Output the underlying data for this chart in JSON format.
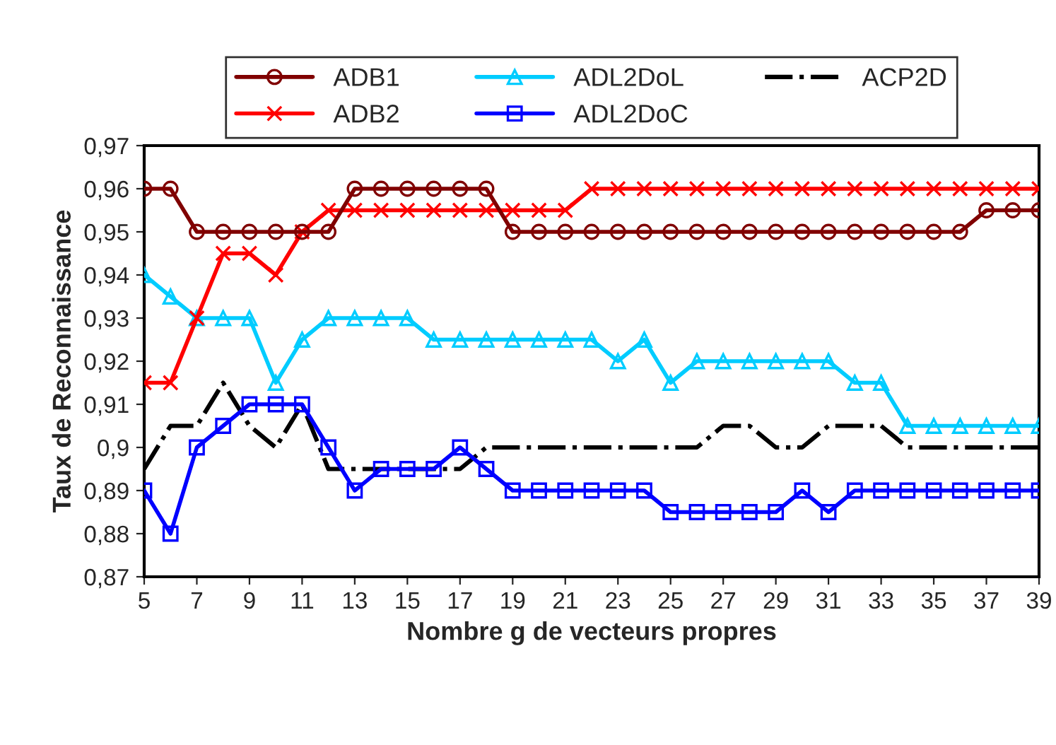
{
  "chart_data": {
    "type": "line",
    "xlabel": "Nombre g de vecteurs propres",
    "ylabel": "Taux de Reconnaissance",
    "x": [
      5,
      6,
      7,
      8,
      9,
      10,
      11,
      12,
      13,
      14,
      15,
      16,
      17,
      18,
      19,
      20,
      21,
      22,
      23,
      24,
      25,
      26,
      27,
      28,
      29,
      30,
      31,
      32,
      33,
      34,
      35,
      36,
      37,
      38,
      39
    ],
    "series": [
      {
        "name": "ADB1",
        "color": "#800000",
        "marker": "circle",
        "line_style": "solid",
        "values": [
          0.96,
          0.96,
          0.95,
          0.95,
          0.95,
          0.95,
          0.95,
          0.95,
          0.96,
          0.96,
          0.96,
          0.96,
          0.96,
          0.96,
          0.95,
          0.95,
          0.95,
          0.95,
          0.95,
          0.95,
          0.95,
          0.95,
          0.95,
          0.95,
          0.95,
          0.95,
          0.95,
          0.95,
          0.95,
          0.95,
          0.95,
          0.95,
          0.955,
          0.955,
          0.955
        ]
      },
      {
        "name": "ADB2",
        "color": "#ff0000",
        "marker": "cross",
        "line_style": "solid",
        "values": [
          0.915,
          0.915,
          0.93,
          0.945,
          0.945,
          0.94,
          0.95,
          0.955,
          0.955,
          0.955,
          0.955,
          0.955,
          0.955,
          0.955,
          0.955,
          0.955,
          0.955,
          0.96,
          0.96,
          0.96,
          0.96,
          0.96,
          0.96,
          0.96,
          0.96,
          0.96,
          0.96,
          0.96,
          0.96,
          0.96,
          0.96,
          0.96,
          0.96,
          0.96,
          0.96
        ]
      },
      {
        "name": "ADL2DoL",
        "color": "#00ccff",
        "marker": "triangle",
        "line_style": "solid",
        "values": [
          0.94,
          0.935,
          0.93,
          0.93,
          0.93,
          0.915,
          0.925,
          0.93,
          0.93,
          0.93,
          0.93,
          0.925,
          0.925,
          0.925,
          0.925,
          0.925,
          0.925,
          0.925,
          0.92,
          0.925,
          0.915,
          0.92,
          0.92,
          0.92,
          0.92,
          0.92,
          0.92,
          0.915,
          0.915,
          0.905,
          0.905,
          0.905,
          0.905,
          0.905,
          0.905
        ]
      },
      {
        "name": "ADL2DoC",
        "color": "#0000ff",
        "marker": "square",
        "line_style": "solid",
        "values": [
          0.89,
          0.88,
          0.9,
          0.905,
          0.91,
          0.91,
          0.91,
          0.9,
          0.89,
          0.895,
          0.895,
          0.895,
          0.9,
          0.895,
          0.89,
          0.89,
          0.89,
          0.89,
          0.89,
          0.89,
          0.885,
          0.885,
          0.885,
          0.885,
          0.885,
          0.89,
          0.885,
          0.89,
          0.89,
          0.89,
          0.89,
          0.89,
          0.89,
          0.89,
          0.89
        ]
      },
      {
        "name": "ACP2D",
        "color": "#000000",
        "marker": "none",
        "line_style": "dashdot",
        "values": [
          0.895,
          0.905,
          0.905,
          0.915,
          0.905,
          0.9,
          0.91,
          0.895,
          0.895,
          0.895,
          0.895,
          0.895,
          0.895,
          0.9,
          0.9,
          0.9,
          0.9,
          0.9,
          0.9,
          0.9,
          0.9,
          0.9,
          0.905,
          0.905,
          0.9,
          0.9,
          0.905,
          0.905,
          0.905,
          0.9,
          0.9,
          0.9,
          0.9,
          0.9,
          0.9
        ]
      }
    ],
    "xlim": [
      5,
      39
    ],
    "xticks": [
      5,
      7,
      9,
      11,
      13,
      15,
      17,
      19,
      21,
      23,
      25,
      27,
      29,
      31,
      33,
      35,
      37,
      39
    ],
    "ylim": [
      0.87,
      0.97
    ],
    "yticks": [
      {
        "value": 0.87,
        "label": "0,87"
      },
      {
        "value": 0.88,
        "label": "0,88"
      },
      {
        "value": 0.89,
        "label": "0,89"
      },
      {
        "value": 0.9,
        "label": "0,9"
      },
      {
        "value": 0.91,
        "label": "0,91"
      },
      {
        "value": 0.92,
        "label": "0,92"
      },
      {
        "value": 0.93,
        "label": "0,93"
      },
      {
        "value": 0.94,
        "label": "0,94"
      },
      {
        "value": 0.95,
        "label": "0,95"
      },
      {
        "value": 0.96,
        "label": "0,96"
      },
      {
        "value": 0.97,
        "label": "0,97"
      }
    ],
    "grid": false,
    "legend": "top"
  }
}
